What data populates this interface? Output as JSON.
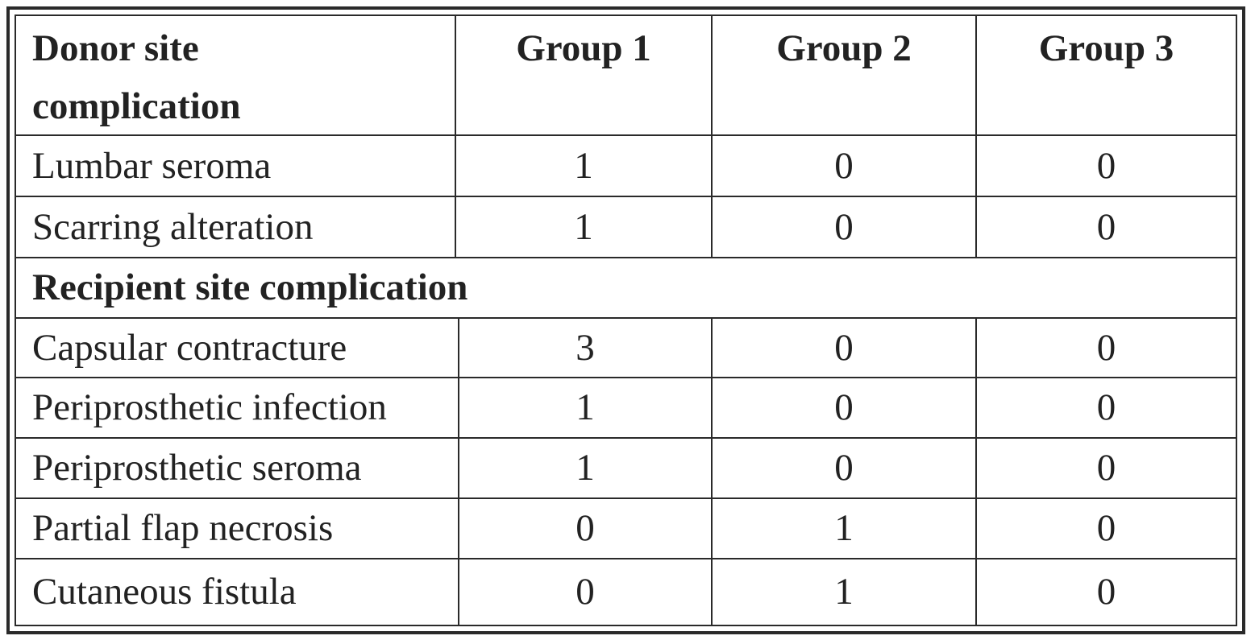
{
  "table": {
    "header": {
      "row_label": "Donor site complication",
      "row_label_line1": "Donor site",
      "row_label_line2": "complication",
      "groups": [
        "Group 1",
        "Group 2",
        "Group 3"
      ]
    },
    "donor_rows": [
      {
        "label": "Lumbar seroma",
        "values": [
          "1",
          "0",
          "0"
        ]
      },
      {
        "label": "Scarring alteration",
        "values": [
          "1",
          "0",
          "0"
        ]
      }
    ],
    "recipient_section_label": "Recipient site complication",
    "recipient_rows": [
      {
        "label": "Capsular contracture",
        "values": [
          "3",
          "0",
          "0"
        ]
      },
      {
        "label": "Periprosthetic infection",
        "values": [
          "1",
          "0",
          "0"
        ]
      },
      {
        "label": "Periprosthetic seroma",
        "values": [
          "1",
          "0",
          "0"
        ]
      },
      {
        "label": "Partial flap necrosis",
        "values": [
          "0",
          "1",
          "0"
        ]
      },
      {
        "label": "Cutaneous fistula",
        "values": [
          "0",
          "1",
          "0"
        ]
      }
    ]
  }
}
